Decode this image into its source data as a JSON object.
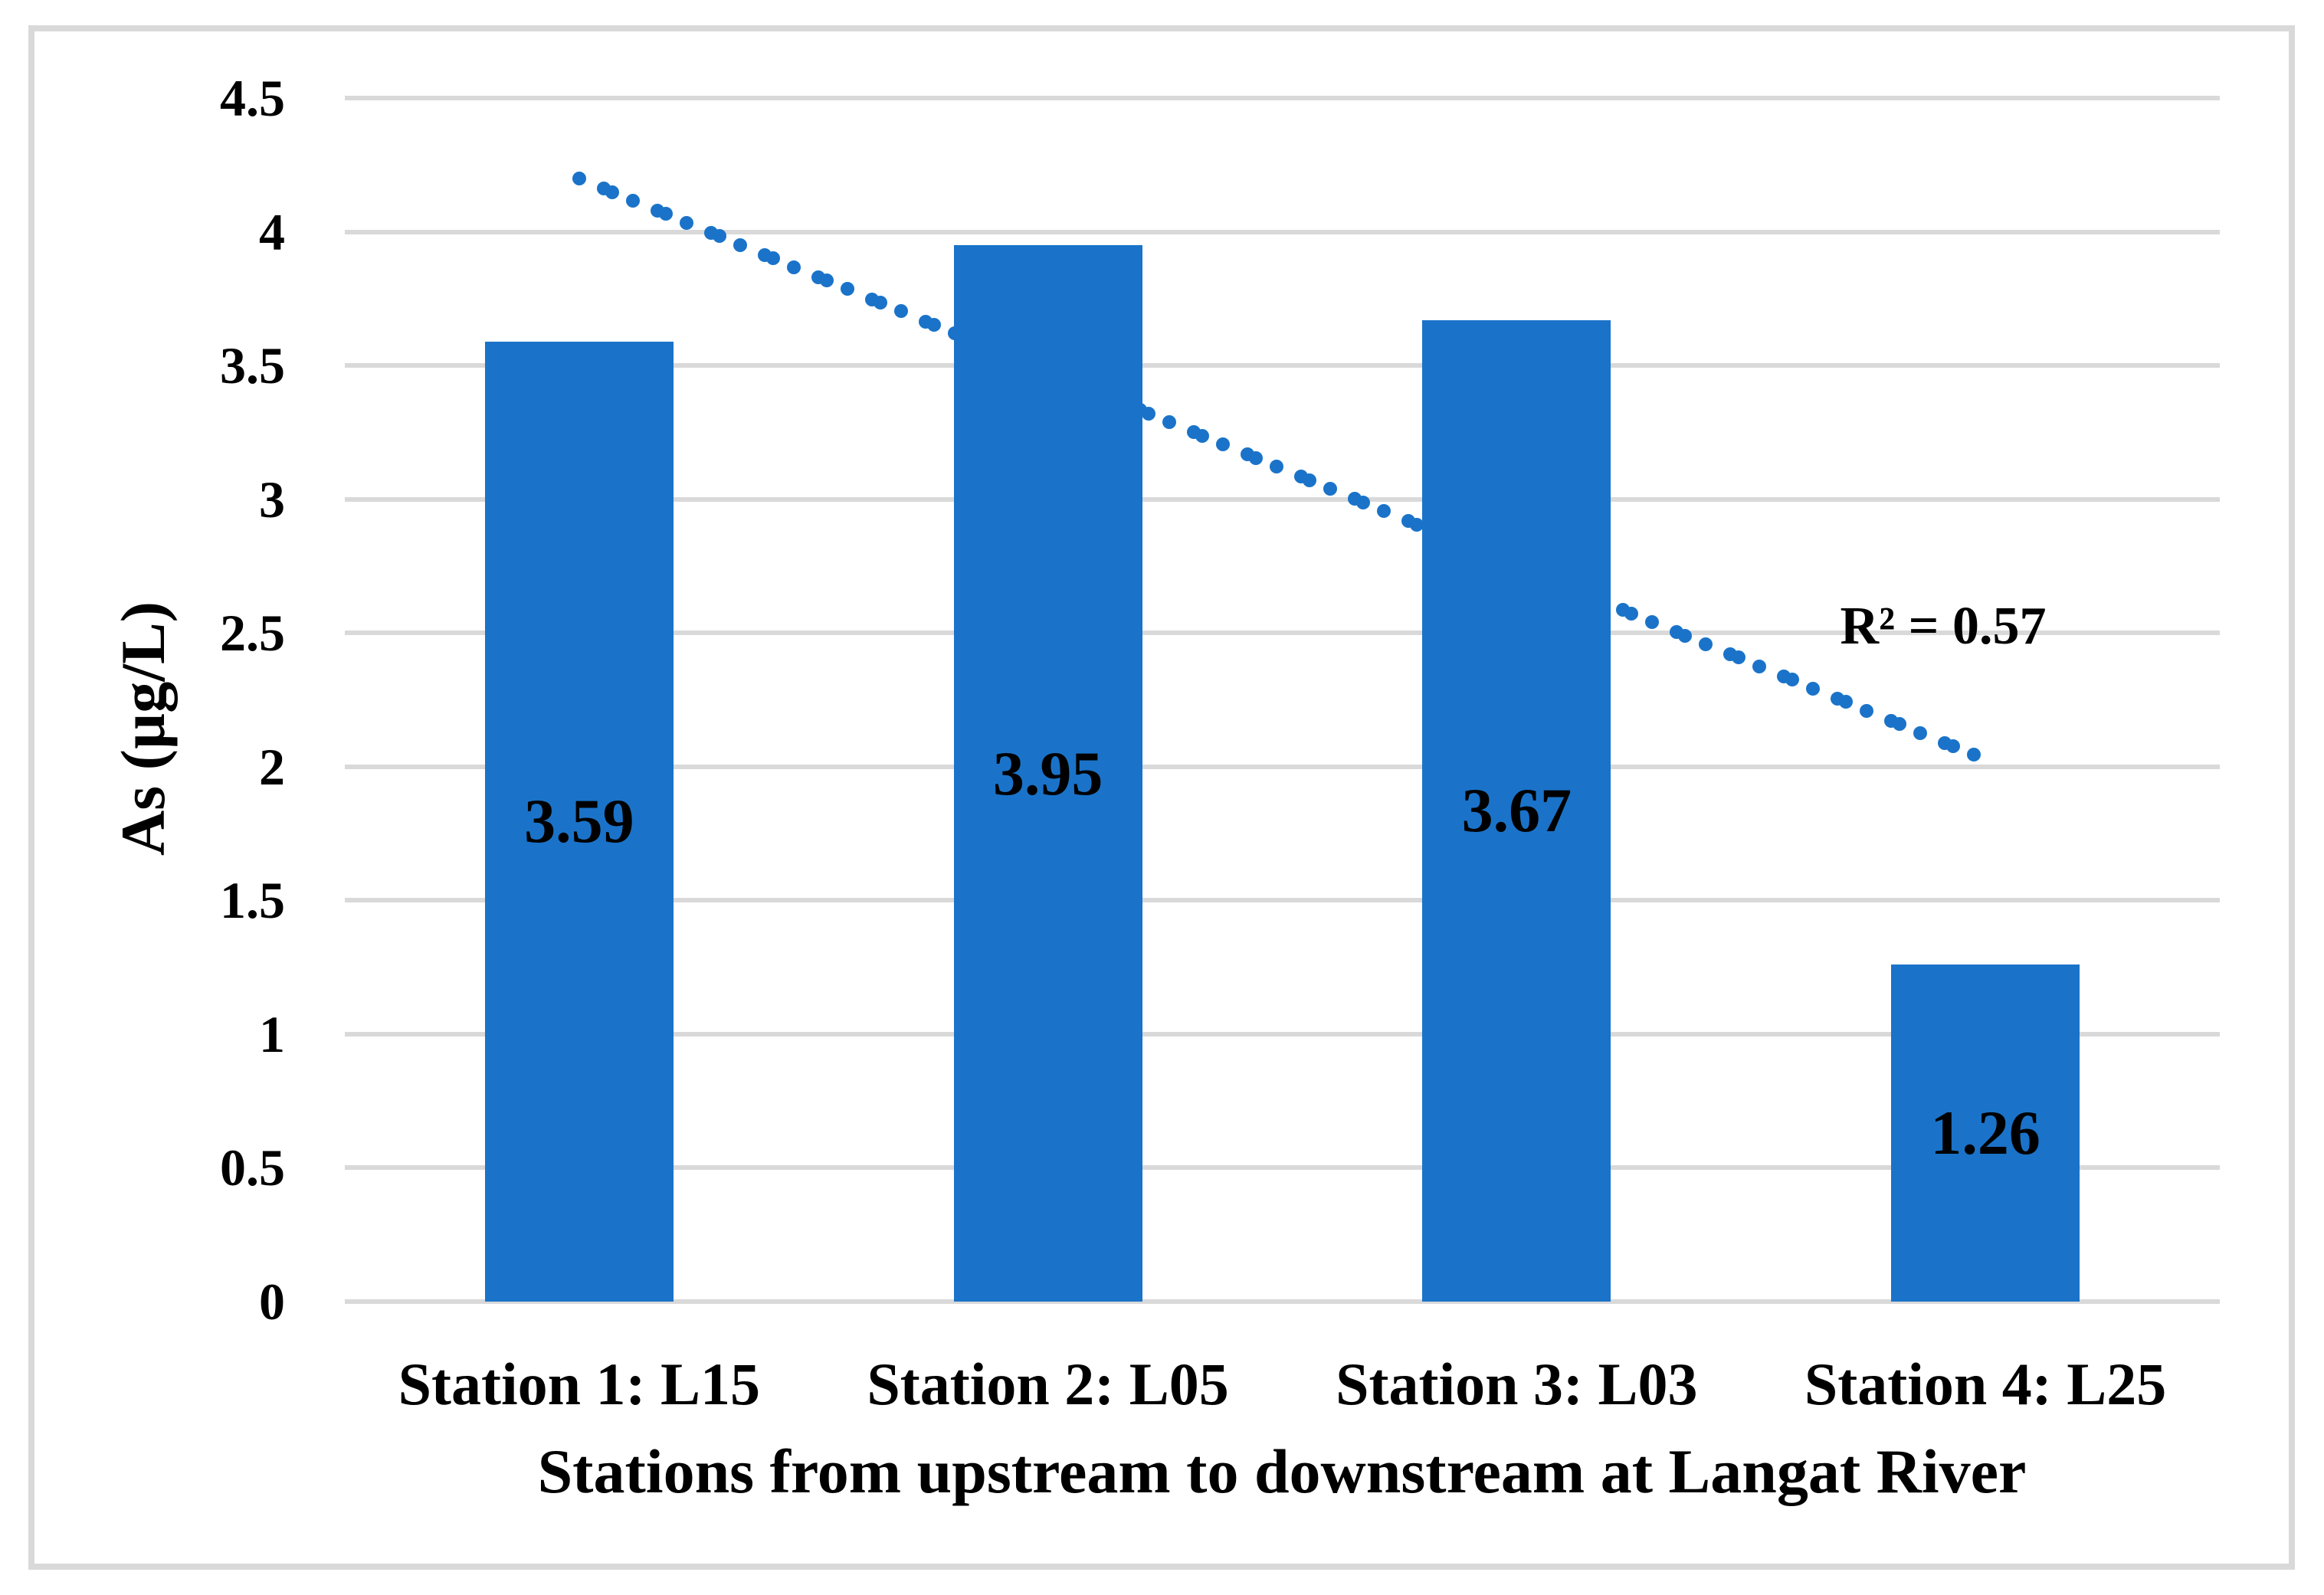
{
  "chart_data": {
    "type": "bar",
    "title": "",
    "categories": [
      "Station 1: L15",
      "Station 2: L05",
      "Station 3: L03",
      "Station 4: L25"
    ],
    "values": [
      3.59,
      3.95,
      3.67,
      1.26
    ],
    "value_labels": [
      "3.59",
      "3.95",
      "3.67",
      "1.26"
    ],
    "xlabel": "Stations from upstream to downstream at Langat River",
    "ylabel": "As (µg/L)",
    "ylim": [
      0,
      4.5
    ],
    "y_tick_values": [
      4.5,
      4,
      3.5,
      3,
      2.5,
      2,
      1.5,
      1,
      0.5,
      0
    ],
    "y_tick_labels": [
      "4.5",
      "4",
      "3.5",
      "3",
      "2.5",
      "2",
      "1.5",
      "1",
      "0.5",
      "0"
    ],
    "grid": "horizontal",
    "legend": "none",
    "bar_color": "#1A73C9",
    "gridline_color": "#D9D9D9",
    "frame_color": "#D9D9D9",
    "text_color": "#000000",
    "trendline": {
      "type": "linear-dotted",
      "color": "#1A73C9",
      "start_value": 4.2,
      "end_value": 2.04,
      "r2_label": "R² = 0.57"
    }
  }
}
